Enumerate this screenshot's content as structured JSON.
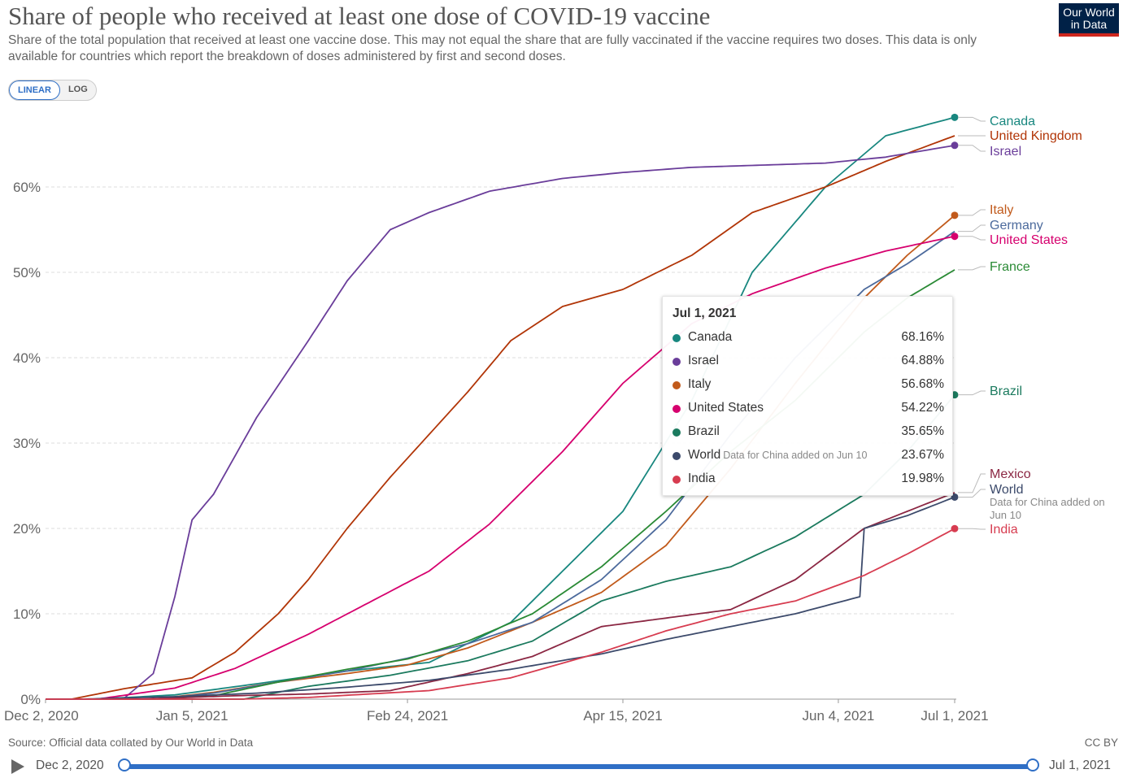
{
  "header": {
    "title": "Share of people who received at least one dose of COVID-19 vaccine",
    "subtitle": "Share of the total population that received at least one vaccine dose. This may not equal the share that are fully vaccinated if the vaccine requires two doses. This data is only available for countries which report the breakdown of doses administered by first and second doses.",
    "logo_line1": "Our World",
    "logo_line2": "in Data"
  },
  "scale_toggle": {
    "linear": "LINEAR",
    "log": "LOG",
    "selected": "LINEAR"
  },
  "footer": {
    "source": "Source: Official data collated by Our World in Data",
    "license": "CC BY"
  },
  "timeline": {
    "start_label": "Dec 2, 2020",
    "end_label": "Jul 1, 2021",
    "play_icon": "play-icon"
  },
  "tooltip": {
    "date": "Jul 1, 2021",
    "rows": [
      {
        "name": "Canada",
        "value": "68.16%",
        "note": ""
      },
      {
        "name": "Israel",
        "value": "64.88%",
        "note": ""
      },
      {
        "name": "Italy",
        "value": "56.68%",
        "note": ""
      },
      {
        "name": "United States",
        "value": "54.22%",
        "note": ""
      },
      {
        "name": "Brazil",
        "value": "35.65%",
        "note": ""
      },
      {
        "name": "World",
        "value": "23.67%",
        "note": "Data for China added on Jun 10"
      },
      {
        "name": "India",
        "value": "19.98%",
        "note": ""
      }
    ]
  },
  "chart_data": {
    "type": "line",
    "title": "Share of people who received at least one dose of COVID-19 vaccine",
    "x_type": "date",
    "xlim": [
      "2020-12-02",
      "2021-07-01"
    ],
    "ylim": [
      0,
      70
    ],
    "y_unit": "%",
    "grid": "horizontal dashed",
    "legend": "line-end labels at right",
    "x_ticks": [
      "Dec 2, 2020",
      "Jan 5, 2021",
      "Feb 24, 2021",
      "Apr 15, 2021",
      "Jun 4, 2021",
      "Jul 1, 2021"
    ],
    "x_tick_dates": [
      "2020-12-02",
      "2021-01-05",
      "2021-02-24",
      "2021-04-15",
      "2021-06-04",
      "2021-07-01"
    ],
    "y_ticks": [
      "0%",
      "10%",
      "20%",
      "30%",
      "40%",
      "50%",
      "60%"
    ],
    "y_tick_values": [
      0,
      10,
      20,
      30,
      40,
      50,
      60
    ],
    "series": [
      {
        "name": "Canada",
        "color": "#18877f",
        "x": [
          "2020-12-14",
          "2021-01-01",
          "2021-01-20",
          "2021-02-10",
          "2021-03-01",
          "2021-03-20",
          "2021-04-01",
          "2021-04-15",
          "2021-05-01",
          "2021-05-15",
          "2021-06-01",
          "2021-06-15",
          "2021-07-01"
        ],
        "y": [
          0,
          0.5,
          1.8,
          3.3,
          4.3,
          9,
          15,
          22,
          35,
          50,
          60,
          66,
          68.16
        ]
      },
      {
        "name": "United Kingdom",
        "color": "#b13507",
        "x": [
          "2020-12-08",
          "2020-12-20",
          "2021-01-05",
          "2021-01-15",
          "2021-01-25",
          "2021-02-01",
          "2021-02-10",
          "2021-02-20",
          "2021-03-01",
          "2021-03-10",
          "2021-03-20",
          "2021-04-01",
          "2021-04-15",
          "2021-05-01",
          "2021-05-15",
          "2021-06-01",
          "2021-06-15",
          "2021-07-01"
        ],
        "y": [
          0,
          1.2,
          2.5,
          5.5,
          10,
          14,
          20,
          26,
          31,
          36,
          42,
          46,
          48,
          52,
          57,
          60,
          63,
          66
        ]
      },
      {
        "name": "Israel",
        "color": "#6a3d9a",
        "x": [
          "2020-12-20",
          "2020-12-27",
          "2021-01-01",
          "2021-01-05",
          "2021-01-10",
          "2021-01-20",
          "2021-02-01",
          "2021-02-10",
          "2021-02-20",
          "2021-03-01",
          "2021-03-15",
          "2021-04-01",
          "2021-04-15",
          "2021-05-01",
          "2021-06-01",
          "2021-06-15",
          "2021-07-01"
        ],
        "y": [
          0,
          3,
          12,
          21,
          24,
          33,
          42,
          49,
          55,
          57,
          59.5,
          61,
          61.7,
          62.3,
          62.8,
          63.5,
          64.88
        ]
      },
      {
        "name": "Italy",
        "color": "#c15a1b",
        "x": [
          "2020-12-27",
          "2021-01-10",
          "2021-01-25",
          "2021-02-10",
          "2021-02-24",
          "2021-03-10",
          "2021-03-25",
          "2021-04-10",
          "2021-04-25",
          "2021-05-10",
          "2021-05-25",
          "2021-06-10",
          "2021-06-20",
          "2021-07-01"
        ],
        "y": [
          0,
          0.8,
          2,
          3,
          4,
          6,
          9,
          12.5,
          18,
          27,
          37,
          47,
          52,
          56.68
        ]
      },
      {
        "name": "Germany",
        "color": "#4c6a9c",
        "x": [
          "2020-12-27",
          "2021-01-10",
          "2021-01-25",
          "2021-02-10",
          "2021-02-24",
          "2021-03-10",
          "2021-03-25",
          "2021-04-10",
          "2021-04-25",
          "2021-05-10",
          "2021-05-25",
          "2021-06-10",
          "2021-06-20",
          "2021-07-01"
        ],
        "y": [
          0,
          0.7,
          2,
          3.3,
          4.8,
          6.5,
          9,
          14,
          21,
          31,
          40,
          48,
          51,
          54.8
        ]
      },
      {
        "name": "United States",
        "color": "#d6006e",
        "x": [
          "2020-12-14",
          "2021-01-01",
          "2021-01-15",
          "2021-02-01",
          "2021-02-15",
          "2021-03-01",
          "2021-03-15",
          "2021-04-01",
          "2021-04-15",
          "2021-05-01",
          "2021-05-15",
          "2021-06-01",
          "2021-06-15",
          "2021-07-01"
        ],
        "y": [
          0,
          1.3,
          3.6,
          7.6,
          11.3,
          15,
          20.5,
          29,
          37,
          44,
          47.5,
          50.5,
          52.5,
          54.22
        ]
      },
      {
        "name": "France",
        "color": "#2a8a35",
        "x": [
          "2020-12-27",
          "2021-01-10",
          "2021-01-25",
          "2021-02-10",
          "2021-02-24",
          "2021-03-10",
          "2021-03-25",
          "2021-04-10",
          "2021-04-25",
          "2021-05-10",
          "2021-05-25",
          "2021-06-10",
          "2021-06-20",
          "2021-07-01"
        ],
        "y": [
          0,
          0.4,
          2,
          3.5,
          4.7,
          6.8,
          10,
          15.5,
          22,
          29,
          35,
          43,
          47,
          50.3
        ]
      },
      {
        "name": "Brazil",
        "color": "#1b7a5e",
        "x": [
          "2021-01-17",
          "2021-02-01",
          "2021-02-20",
          "2021-03-10",
          "2021-03-25",
          "2021-04-10",
          "2021-04-25",
          "2021-05-10",
          "2021-05-25",
          "2021-06-10",
          "2021-06-20",
          "2021-07-01"
        ],
        "y": [
          0,
          1.5,
          2.8,
          4.5,
          6.8,
          11.5,
          13.8,
          15.5,
          19,
          24,
          29,
          35.65
        ]
      },
      {
        "name": "Mexico",
        "color": "#8b2743",
        "x": [
          "2020-12-24",
          "2021-01-15",
          "2021-02-01",
          "2021-02-20",
          "2021-03-10",
          "2021-03-25",
          "2021-04-10",
          "2021-04-25",
          "2021-05-10",
          "2021-05-25",
          "2021-06-10",
          "2021-06-20",
          "2021-07-01"
        ],
        "y": [
          0,
          0.4,
          0.6,
          1,
          3,
          5,
          8.5,
          9.5,
          10.5,
          14,
          20,
          22,
          24.2
        ]
      },
      {
        "name": "World",
        "color": "#3c4a6b",
        "x": [
          "2020-12-10",
          "2021-01-01",
          "2021-01-20",
          "2021-02-10",
          "2021-03-01",
          "2021-03-20",
          "2021-04-10",
          "2021-04-25",
          "2021-05-10",
          "2021-05-25",
          "2021-06-09",
          "2021-06-10",
          "2021-06-20",
          "2021-07-01"
        ],
        "y": [
          0,
          0.3,
          0.7,
          1.4,
          2.2,
          3.5,
          5.3,
          7,
          8.5,
          10,
          12,
          20,
          21.5,
          23.67
        ]
      },
      {
        "name": "India",
        "color": "#d73c50",
        "x": [
          "2021-01-16",
          "2021-02-01",
          "2021-03-01",
          "2021-03-20",
          "2021-04-10",
          "2021-04-25",
          "2021-05-10",
          "2021-05-25",
          "2021-06-10",
          "2021-06-20",
          "2021-07-01"
        ],
        "y": [
          0,
          0.2,
          1,
          2.5,
          5.5,
          8,
          10,
          11.5,
          14.5,
          17,
          19.98
        ]
      }
    ],
    "end_labels": [
      {
        "text": "Canada",
        "color": "#18877f"
      },
      {
        "text": "United Kingdom",
        "color": "#b13507"
      },
      {
        "text": "Israel",
        "color": "#6a3d9a"
      },
      {
        "text": "Italy",
        "color": "#c15a1b"
      },
      {
        "text": "Germany",
        "color": "#4c6a9c"
      },
      {
        "text": "United States",
        "color": "#d6006e"
      },
      {
        "text": "France",
        "color": "#2a8a35"
      },
      {
        "text": "Brazil",
        "color": "#1b7a5e"
      },
      {
        "text": "Mexico",
        "color": "#8b2743"
      },
      {
        "text": "World",
        "color": "#3c4a6b"
      },
      {
        "text": "Data for China added on",
        "color": "#888888"
      },
      {
        "text": "Jun 10",
        "color": "#888888"
      },
      {
        "text": "India",
        "color": "#d73c50"
      }
    ],
    "marked_series": [
      "Canada",
      "Israel",
      "Italy",
      "United States",
      "Brazil",
      "World",
      "India"
    ]
  }
}
